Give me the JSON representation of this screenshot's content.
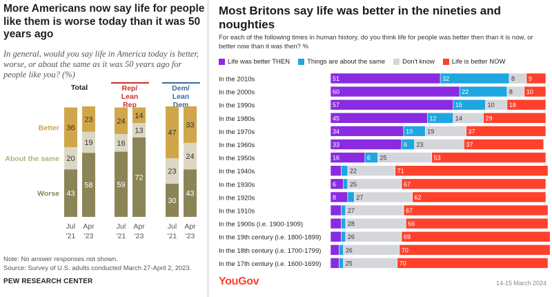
{
  "pew": {
    "title": "More Americans now say life for people like them is worse today than it was 50 years ago",
    "subtitle": "In general, would you say life in America today is better, worse, or about the same as it was 50 years ago for people like you? (%)",
    "note": "Note: No answer responses not shown.",
    "source": "Source: Survey of U.S. adults conducted March 27-April 2, 2023.",
    "org": "PEW RESEARCH CENTER"
  },
  "yougov": {
    "title": "Most Britons say life was better in the nineties and noughties",
    "subtitle": "For each of the following times in human history, do you think life for people was better then than it is now, or better now than it was then? %",
    "brand": "YouGov",
    "date": "14-15 March 2024"
  },
  "chart_data": [
    {
      "type": "bar",
      "stacked": true,
      "orientation": "vertical",
      "groups": [
        "Total",
        "Rep/ Lean Rep",
        "Dem/ Lean Dem"
      ],
      "group_colors": [
        "#222222",
        "#c8312b",
        "#3c6a9c"
      ],
      "categories": [
        [
          "Jul",
          "'21"
        ],
        [
          "Apr",
          "'23"
        ]
      ],
      "series": [
        {
          "name": "Worse",
          "color": "#8b8457",
          "values": [
            [
              43,
              58
            ],
            [
              59,
              72
            ],
            [
              30,
              43
            ]
          ]
        },
        {
          "name": "About the same",
          "color": "#dcd7c4",
          "values": [
            [
              20,
              19
            ],
            [
              16,
              13
            ],
            [
              23,
              24
            ]
          ]
        },
        {
          "name": "Better",
          "color": "#cfa64a",
          "values": [
            [
              36,
              23
            ],
            [
              24,
              14
            ],
            [
              47,
              33
            ]
          ]
        }
      ],
      "ylim": [
        0,
        100
      ]
    },
    {
      "type": "bar",
      "stacked": true,
      "orientation": "horizontal",
      "categories": [
        "In the 2010s",
        "In the 2000s",
        "In the 1990s",
        "In the 1980s",
        "In the 1970s",
        "In the 1960s",
        "In the 1950s",
        "In the 1940s",
        "In the 1930s",
        "In the 1920s",
        "In the 1910s",
        "In the 1900s (i.e. 1900-1909)",
        "In the 19th century (i.e. 1800-1899)",
        "In the 18th century (i.e. 1700-1799)",
        "In the 17th century (i.e. 1600-1699)"
      ],
      "series": [
        {
          "name": "Life was better THEN",
          "color": "#8a2be2",
          "values": [
            51,
            60,
            57,
            45,
            34,
            33,
            16,
            5,
            6,
            8,
            5,
            5,
            5,
            4,
            4
          ]
        },
        {
          "name": "Things are about the same",
          "color": "#1ea6e0",
          "values": [
            32,
            22,
            15,
            12,
            10,
            6,
            6,
            3,
            2,
            3,
            2,
            2,
            2,
            2,
            2
          ]
        },
        {
          "name": "Don't know",
          "color": "#d5d6dc",
          "values": [
            8,
            8,
            10,
            14,
            19,
            23,
            25,
            22,
            25,
            27,
            27,
            28,
            26,
            26,
            25
          ]
        },
        {
          "name": "Life is better NOW",
          "color": "#ff412c",
          "values": [
            9,
            10,
            18,
            29,
            37,
            37,
            53,
            71,
            67,
            62,
            67,
            66,
            69,
            70,
            70
          ]
        }
      ],
      "label_threshold": 6,
      "xlim": [
        0,
        100
      ]
    }
  ]
}
